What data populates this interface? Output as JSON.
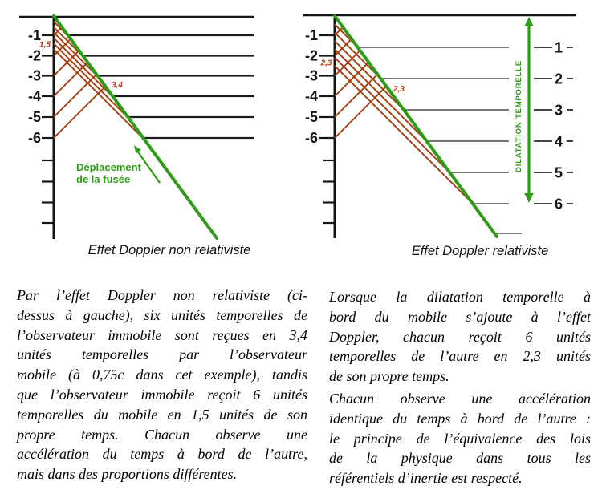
{
  "colors": {
    "green": "#2f9c18",
    "red": "#a63f10",
    "red_label": "#bb3c10"
  },
  "left_diagram": {
    "caption": "Effet Doppler non relativiste",
    "axis_ticks": [
      "-1",
      "-2",
      "-3",
      "-4",
      "-5",
      "-6"
    ],
    "reception_label": "1,5",
    "emission_label": "3,4",
    "annotation_line1": "Déplacement",
    "annotation_line2": "de la fusée"
  },
  "right_diagram": {
    "caption": "Effet Doppler relativiste",
    "axis_ticks": [
      "-1",
      "-2",
      "-3",
      "-4",
      "-5",
      "-6"
    ],
    "proper_ticks": [
      "1",
      "2",
      "3",
      "4",
      "5",
      "6"
    ],
    "reception_label": "2,3",
    "emission_label": "2,3",
    "dilation_label": "DILATATION TEMPORELLE"
  },
  "text": {
    "left_paragraph_lines": [
      "Par l’effet Doppler non relativiste (ci-",
      "dessus à gauche), six unités temporelles de",
      "l’observateur immobile sont reçues en 3,4",
      "unités temporelles par l’observateur",
      "mobile (à 0,75c dans cet exemple), tandis",
      "que l’observateur immobile reçoit 6 unités",
      "temporelles du mobile en 1,5 unités de son",
      "propre temps. Chacun observe une",
      "accélération du temps à bord de l’autre,",
      "mais dans des proportions différentes."
    ],
    "right_paragraph1_lines": [
      "Lorsque la dilatation temporelle à",
      "bord du mobile s’ajoute à l’effet",
      "Doppler, chacun reçoit 6 unités",
      "temporelles de l’autre en 2,3 unités",
      "de son propre temps."
    ],
    "right_paragraph2_lines": [
      "Chacun observe une accélération",
      "identique du temps à bord de l’autre :",
      "le principe de l’équivalence des lois",
      "de la physique dans tous les",
      "référentiels d’inertie est respecté."
    ]
  }
}
